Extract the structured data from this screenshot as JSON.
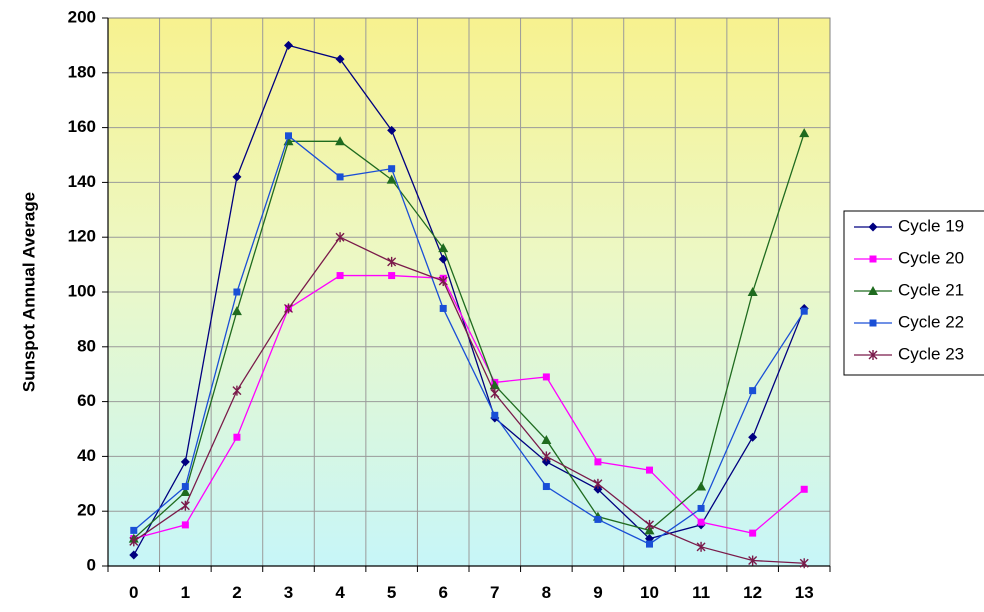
{
  "chart_data": {
    "type": "line",
    "title": "",
    "xlabel": "",
    "ylabel": "Sunspot Annual Average",
    "x": [
      "0",
      "1",
      "2",
      "3",
      "4",
      "5",
      "6",
      "7",
      "8",
      "9",
      "10",
      "11",
      "12",
      "13"
    ],
    "xlim": [
      0,
      13
    ],
    "ylim": [
      0,
      200
    ],
    "yticks": [
      "0",
      "20",
      "40",
      "60",
      "80",
      "100",
      "120",
      "140",
      "160",
      "180",
      "200"
    ],
    "grid": true,
    "background": "vertical gradient from pale yellow (top) through light green to pale cyan (bottom)",
    "legend_position": "right",
    "series": [
      {
        "name": "Cycle 19",
        "color": "#000080",
        "marker": "diamond",
        "values": [
          4,
          38,
          142,
          190,
          185,
          159,
          112,
          54,
          38,
          28,
          10,
          15,
          47,
          94
        ]
      },
      {
        "name": "Cycle 20",
        "color": "#ff00ff",
        "marker": "square",
        "values": [
          10,
          15,
          47,
          94,
          106,
          106,
          105,
          67,
          69,
          38,
          35,
          16,
          12,
          28
        ]
      },
      {
        "name": "Cycle 21",
        "color": "#1f6b1f",
        "marker": "triangle",
        "values": [
          10,
          27,
          93,
          155,
          155,
          141,
          116,
          66,
          46,
          18,
          13,
          29,
          100,
          158
        ]
      },
      {
        "name": "Cycle 22",
        "color": "#1a4fd6",
        "marker": "square",
        "values": [
          13,
          29,
          100,
          157,
          142,
          145,
          94,
          55,
          29,
          17,
          8,
          21,
          64,
          93
        ]
      },
      {
        "name": "Cycle 23",
        "color": "#7a1a4a",
        "marker": "star",
        "values": [
          9,
          22,
          64,
          94,
          120,
          111,
          104,
          63,
          40,
          30,
          15,
          7,
          2,
          1
        ]
      }
    ]
  }
}
